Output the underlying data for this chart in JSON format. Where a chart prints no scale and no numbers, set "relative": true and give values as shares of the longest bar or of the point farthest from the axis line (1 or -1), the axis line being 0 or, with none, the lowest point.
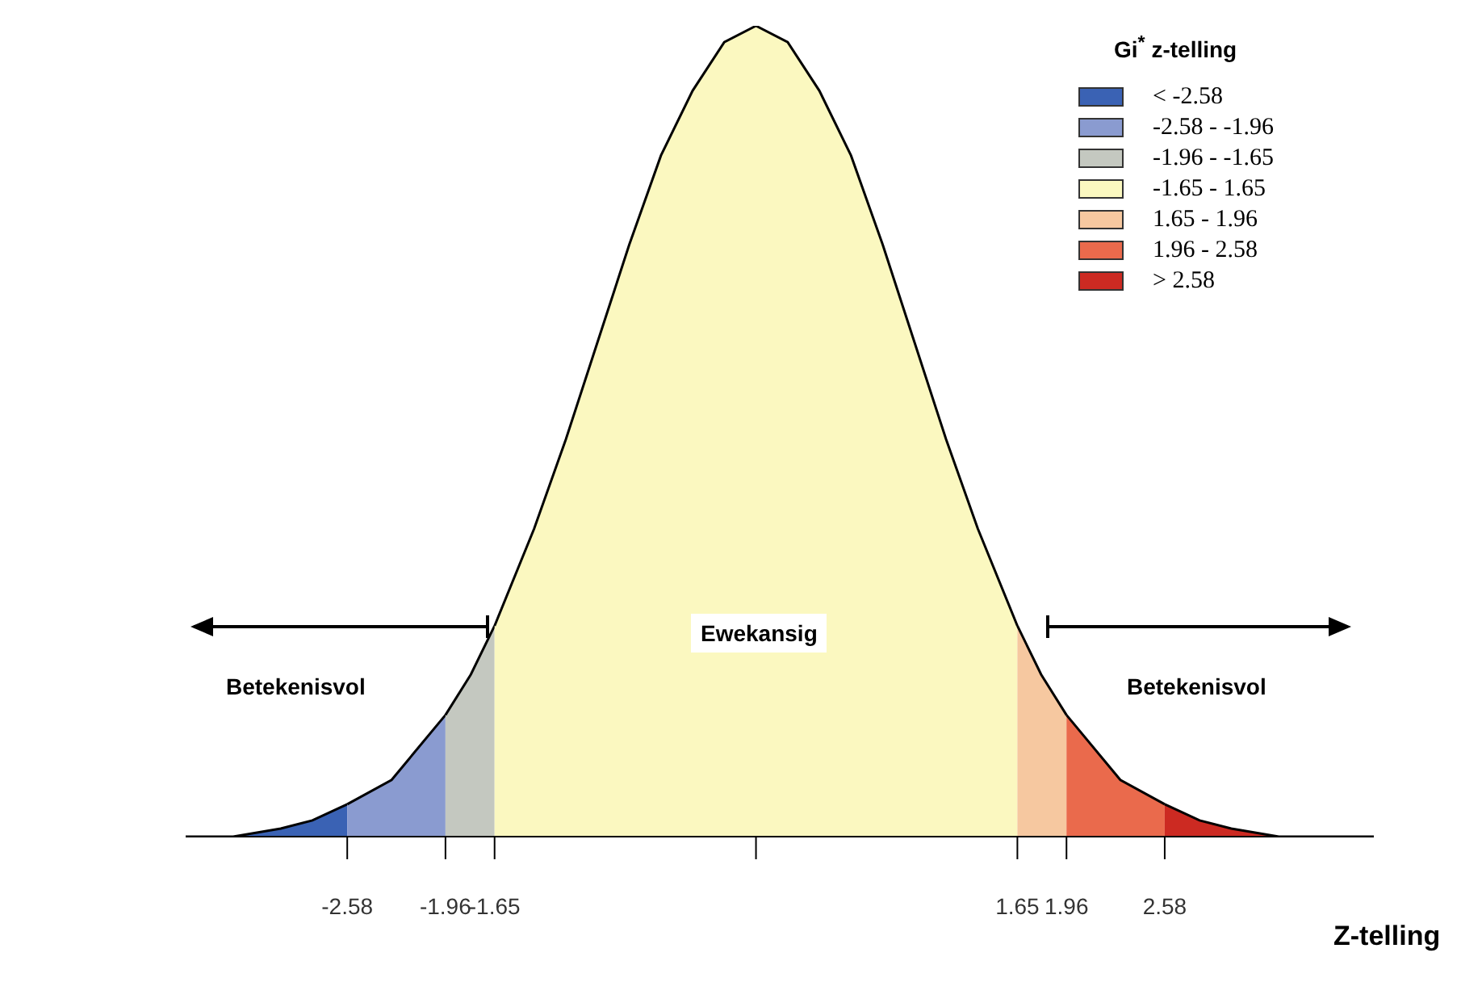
{
  "chart_data": {
    "type": "area",
    "relative": true,
    "legend_title": "Gi$^{*}$ z-telling",
    "legend": "top right",
    "xlabel": "Z-telling",
    "xlim": [
      -3.6,
      3.9
    ],
    "xticks": [
      -2.58,
      -1.96,
      -1.65,
      {
        "value": 0,
        "label": null
      },
      1.65,
      1.96,
      2.58
    ],
    "series": [
      {
        "name": "< -2.58",
        "color": "#3a62b4",
        "x": [
          -3.6,
          -3.3,
          -3.0,
          -2.8,
          -2.58
        ],
        "values": [
          0.0,
          0.0,
          0.01,
          0.02,
          0.04
        ]
      },
      {
        "name": "-2.58 - -1.96",
        "color": "#8a9bd0",
        "x": [
          -2.58,
          -2.3,
          -1.96
        ],
        "values": [
          0.04,
          0.07,
          0.15
        ]
      },
      {
        "name": "-1.96 - -1.65",
        "color": "#c4c8c0",
        "x": [
          -1.96,
          -1.8,
          -1.65
        ],
        "values": [
          0.15,
          0.2,
          0.26
        ]
      },
      {
        "name": "-1.65 - 1.65",
        "color": "#fbf8c0",
        "x": [
          -1.65,
          -1.4,
          -1.2,
          -1.0,
          -0.8,
          -0.6,
          -0.4,
          -0.2,
          0,
          0.2,
          0.4,
          0.6,
          0.8,
          1.0,
          1.2,
          1.4,
          1.65
        ],
        "values": [
          0.26,
          0.38,
          0.49,
          0.61,
          0.73,
          0.84,
          0.92,
          0.98,
          1,
          0.98,
          0.92,
          0.84,
          0.73,
          0.61,
          0.49,
          0.38,
          0.26
        ]
      },
      {
        "name": "1.65 - 1.96",
        "color": "#f6c8a0",
        "x": [
          1.65,
          1.8,
          1.96
        ],
        "values": [
          0.26,
          0.2,
          0.15
        ]
      },
      {
        "name": "1.96 - 2.58",
        "color": "#ea6a4c",
        "x": [
          1.96,
          2.3,
          2.58
        ],
        "values": [
          0.15,
          0.07,
          0.04
        ]
      },
      {
        "name": "> 2.58",
        "color": "#cc2a22",
        "x": [
          2.58,
          2.8,
          3.0,
          3.3,
          3.6,
          3.9
        ],
        "values": [
          0.04,
          0.02,
          0.01,
          0.0,
          0.0,
          0.0
        ]
      }
    ],
    "annotations": [
      "Ewekansig",
      "Betekenisvol",
      "Betekenisvol"
    ]
  }
}
